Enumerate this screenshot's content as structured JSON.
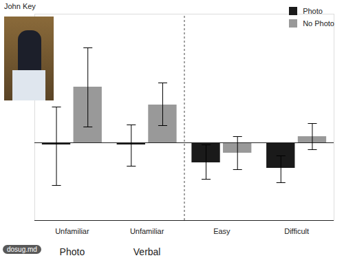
{
  "chart_data": {
    "type": "bar",
    "title": "John Key",
    "categories": [
      "Unfamiliar",
      "Unfamiliar",
      "Easy",
      "Difficult"
    ],
    "group_labels": [
      "Photo",
      "Verbal",
      null,
      null
    ],
    "series": [
      {
        "name": "Photo",
        "color": "#1a1a1a",
        "values": [
          -0.03,
          -0.03,
          -0.29,
          -0.37
        ],
        "error_low": [
          -0.62,
          -0.34,
          -0.53,
          -0.58
        ],
        "error_high": [
          0.52,
          0.26,
          -0.03,
          -0.19
        ]
      },
      {
        "name": "No Photo",
        "color": "#999999",
        "values": [
          0.81,
          0.55,
          -0.15,
          0.09
        ],
        "error_low": [
          0.23,
          0.25,
          -0.39,
          -0.1
        ],
        "error_high": [
          1.38,
          0.87,
          0.09,
          0.28
        ]
      }
    ],
    "ylim": [
      -1.13,
      1.87
    ],
    "yticks": [],
    "tick_labels": "x",
    "legend": "top-right",
    "annotations": [
      "dosug.md"
    ]
  }
}
